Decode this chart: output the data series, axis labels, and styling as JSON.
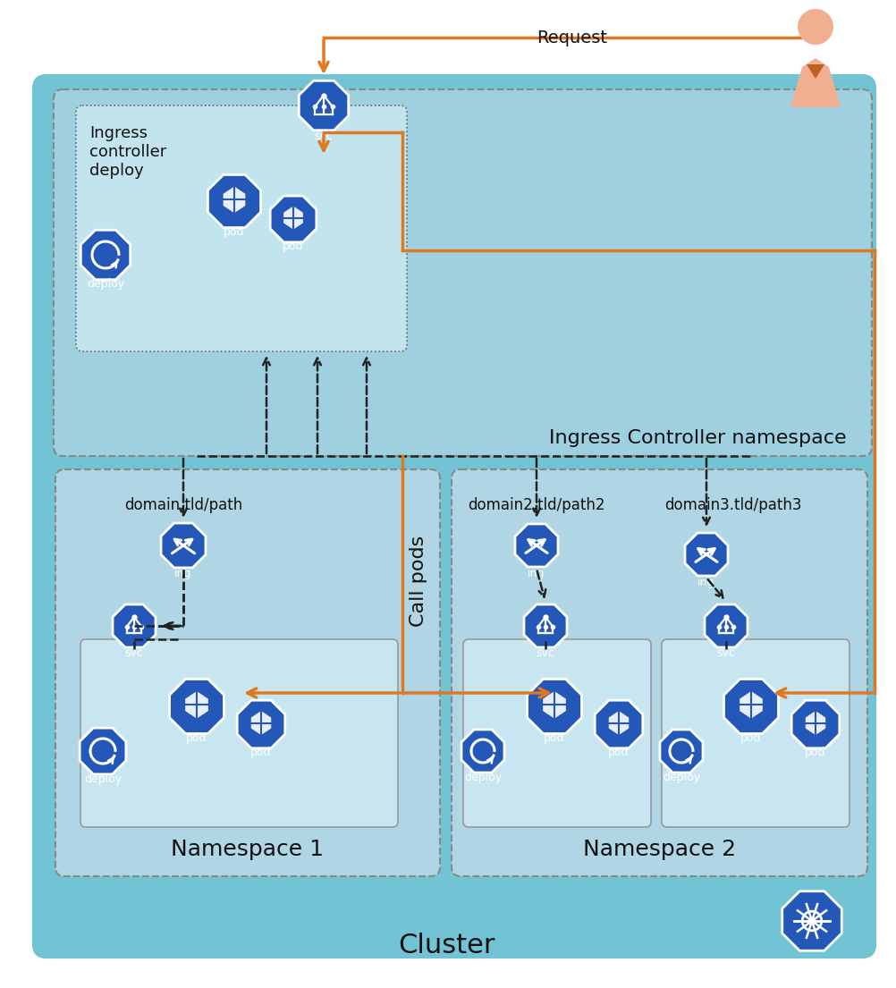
{
  "bg_white": "#FFFFFF",
  "bg_cluster": "#72C4D4",
  "bg_ingress_ns": "#9ED0E0",
  "bg_inner_dotted": "#C2E4EF",
  "bg_ns": "#B0D5E4",
  "bg_pod_box": "#C8E6F2",
  "orange": "#E07820",
  "blue_icon": "#2458B8",
  "dashed_col": "#222222",
  "text_col": "#111111",
  "skin": "#F0B090",
  "shirt": "#C06020",
  "cluster_title": "Cluster",
  "ingress_ns_title": "Ingress Controller namespace",
  "ns1_title": "Namespace 1",
  "ns2_title": "Namespace 2",
  "ic_deploy_label": "Ingress\ncontroller\ndeploy",
  "request_label": "Request",
  "call_pods_label": "Call pods",
  "domain1": "domain.tld/path",
  "domain2": "domain2.tld/path2",
  "domain3": "domain3.tld/path3"
}
